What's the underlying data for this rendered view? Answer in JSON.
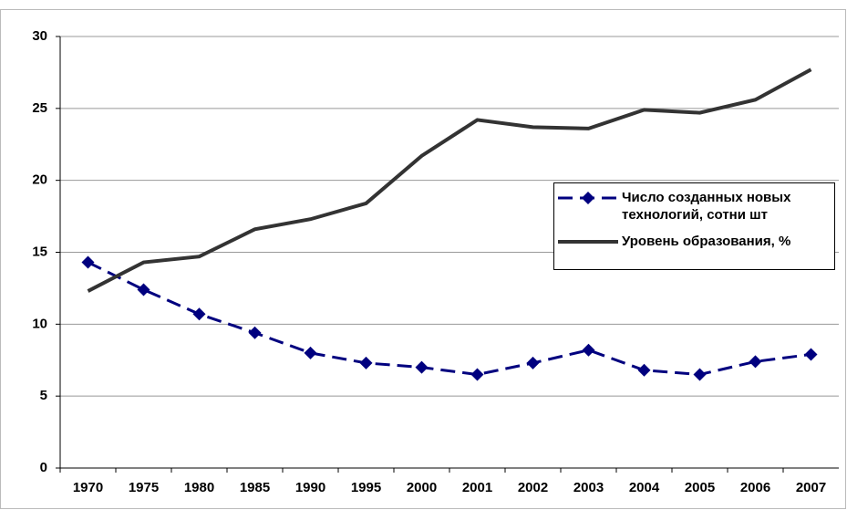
{
  "chart_data": {
    "type": "line",
    "categories": [
      "1970",
      "1975",
      "1980",
      "1985",
      "1990",
      "1995",
      "2000",
      "2001",
      "2002",
      "2003",
      "2004",
      "2005",
      "2006",
      "2007"
    ],
    "series": [
      {
        "name": "Число созданных новых технологий, сотни шт",
        "color": "#00007f",
        "dash": true,
        "marker": "diamond",
        "values": [
          14.3,
          12.4,
          10.7,
          9.4,
          8.0,
          7.3,
          7.0,
          6.5,
          7.3,
          8.2,
          6.8,
          6.5,
          7.4,
          7.9
        ]
      },
      {
        "name": "Уровень образования, %",
        "color": "#333333",
        "dash": false,
        "marker": "none",
        "values": [
          12.3,
          14.3,
          14.7,
          16.6,
          17.3,
          18.4,
          21.7,
          24.2,
          23.7,
          23.6,
          24.9,
          24.7,
          25.6,
          27.7
        ]
      }
    ],
    "ylim": [
      0,
      30
    ],
    "yticks": [
      0,
      5,
      10,
      15,
      20,
      25,
      30
    ],
    "grid": true,
    "legend": "right"
  }
}
